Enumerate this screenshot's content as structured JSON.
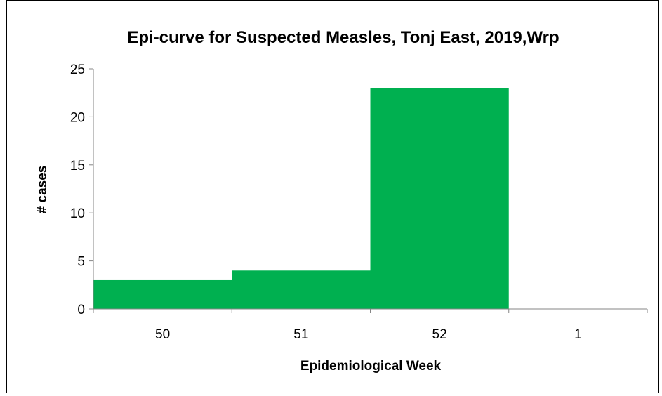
{
  "chart_data": {
    "type": "bar",
    "title": "Epi-curve for Suspected Measles, Tonj East, 2019,Wrp",
    "xlabel": "Epidemiological Week",
    "ylabel": "# cases",
    "categories": [
      "50",
      "51",
      "52",
      "1"
    ],
    "values": [
      3,
      4,
      23,
      0
    ],
    "ylim": [
      0,
      25
    ],
    "yticks": [
      0,
      5,
      10,
      15,
      20,
      25
    ],
    "grid": false,
    "legend": "none",
    "bar_color": "#00b050"
  }
}
